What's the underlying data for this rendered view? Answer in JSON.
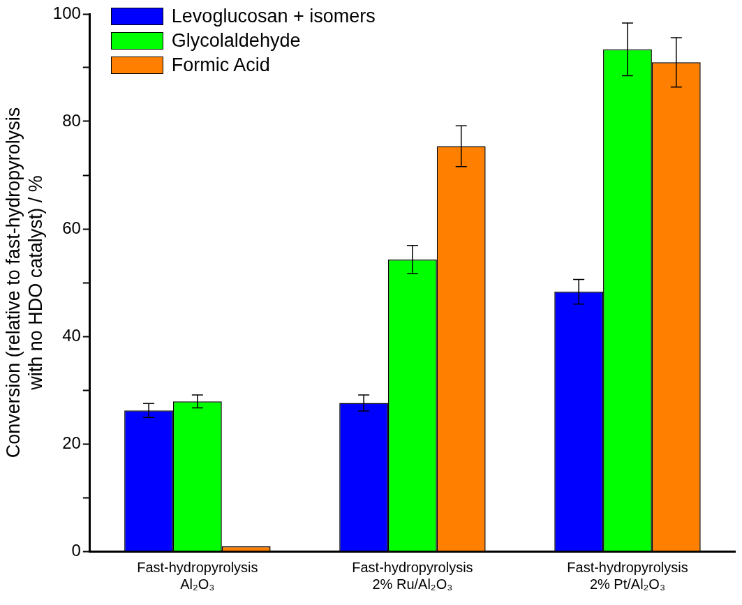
{
  "chart_data": {
    "type": "bar",
    "ylabel": "Conversion (relative to fast-hydropyrolysis\nwith no HDO catalyst) / %",
    "categories": [
      "Fast-hydropyrolysis\nAl₂O₃",
      "Fast-hydropyrolysis\n2% Ru/Al₂O₃",
      "Fast-hydropyrolysis\n2% Pt/Al₂O₃"
    ],
    "series": [
      {
        "name": "Levoglucosan + isomers",
        "color": "#0000ff",
        "values": [
          26.2,
          27.6,
          48.3
        ],
        "errors": [
          1.3,
          1.5,
          2.3
        ]
      },
      {
        "name": "Glycolaldehyde",
        "color": "#00ff00",
        "values": [
          27.9,
          54.3,
          93.4
        ],
        "errors": [
          1.2,
          2.6,
          4.9
        ]
      },
      {
        "name": "Formic Acid",
        "color": "#ff8000",
        "values": [
          0.9,
          75.4,
          91.0
        ],
        "errors": [
          null,
          3.8,
          4.6
        ]
      }
    ],
    "ylim": [
      0,
      100
    ],
    "yticks": [
      0,
      {
        "value": 10,
        "label": null
      },
      20,
      {
        "value": 30,
        "label": null
      },
      40,
      {
        "value": 50,
        "label": null
      },
      60,
      {
        "value": 70,
        "label": null
      },
      80,
      {
        "value": 90,
        "label": null
      },
      100
    ],
    "grid": false,
    "legend": "top left"
  }
}
